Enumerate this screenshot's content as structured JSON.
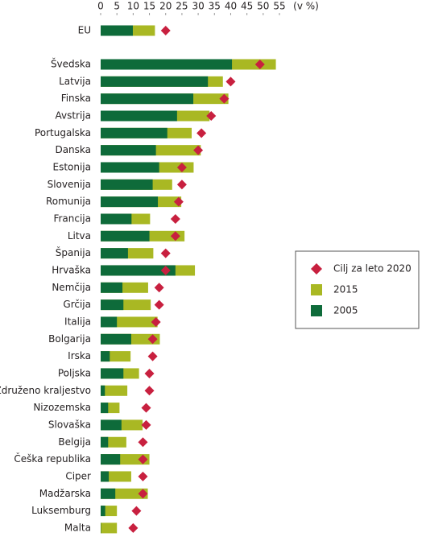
{
  "chart_data": {
    "type": "bar",
    "orientation": "horizontal",
    "x_label": "(v %)",
    "categories": [
      "EU",
      "Švedska",
      "Latvija",
      "Finska",
      "Avstrija",
      "Portugalska",
      "Danska",
      "Estonija",
      "Slovenija",
      "Romunija",
      "Francija",
      "Litva",
      "Španija",
      "Hrvaška",
      "Nemčija",
      "Grčija",
      "Italija",
      "Bolgarija",
      "Irska",
      "Poljska",
      "Združeno kraljestvo",
      "Nizozemska",
      "Slovaška",
      "Belgija",
      "Češka republika",
      "Ciper",
      "Madžarska",
      "Luksemburg",
      "Malta"
    ],
    "series": [
      {
        "name": "Cilj za leto 2020",
        "mark": "diamond",
        "color": "#c8203f",
        "values": [
          20,
          49,
          40,
          38,
          34,
          31,
          30,
          25,
          25,
          24,
          23,
          23,
          20,
          20,
          18,
          18,
          17,
          16,
          16,
          15,
          15,
          14,
          14,
          13,
          13,
          13,
          13,
          11,
          10
        ]
      },
      {
        "name": "2015",
        "mark": "bar",
        "color": "#a9b823",
        "values": [
          16.7,
          53.9,
          37.6,
          39.3,
          33.5,
          28,
          30.8,
          28.6,
          22,
          24.8,
          15.2,
          25.8,
          16.2,
          29,
          14.6,
          15.4,
          17.5,
          18.2,
          9.2,
          11.8,
          8.2,
          5.8,
          12.9,
          7.9,
          15,
          9.4,
          14.5,
          5,
          5
        ]
      },
      {
        "name": "2005",
        "mark": "bar",
        "color": "#0e6b3a",
        "values": [
          9.9,
          40.4,
          33,
          28.5,
          23.5,
          20.5,
          17,
          18,
          16,
          17.6,
          9.5,
          15,
          8.4,
          23,
          6.7,
          7,
          5,
          9.4,
          2.8,
          7,
          1.3,
          2.3,
          6.4,
          2.3,
          6,
          2.5,
          4.5,
          1.4,
          0.1
        ]
      }
    ],
    "xlim": [
      0,
      55
    ],
    "xticks": [
      0,
      5,
      10,
      15,
      20,
      25,
      30,
      35,
      40,
      45,
      50,
      55
    ]
  }
}
